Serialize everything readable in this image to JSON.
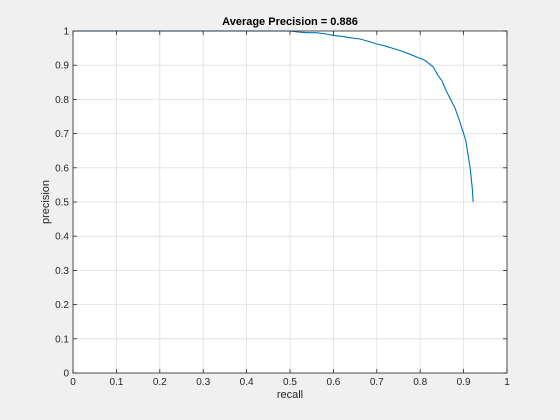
{
  "chart_data": {
    "type": "line",
    "title": "Average Precision = 0.886",
    "xlabel": "recall",
    "ylabel": "precision",
    "xlim": [
      0,
      1
    ],
    "ylim": [
      0,
      1
    ],
    "grid": true,
    "legend": "none",
    "x_ticks": [
      "0",
      "0.1",
      "0.2",
      "0.3",
      "0.4",
      "0.5",
      "0.6",
      "0.7",
      "0.8",
      "0.9",
      "1"
    ],
    "y_ticks": [
      "0",
      "0.1",
      "0.2",
      "0.3",
      "0.4",
      "0.5",
      "0.6",
      "0.7",
      "0.8",
      "0.9",
      "1"
    ],
    "series": [
      {
        "color": "#0072bd",
        "x": [
          0,
          0.05,
          0.1,
          0.2,
          0.3,
          0.4,
          0.45,
          0.5,
          0.52,
          0.54,
          0.56,
          0.58,
          0.6,
          0.62,
          0.64,
          0.66,
          0.68,
          0.7,
          0.72,
          0.74,
          0.76,
          0.78,
          0.8,
          0.81,
          0.82,
          0.83,
          0.84,
          0.85,
          0.86,
          0.87,
          0.88,
          0.89,
          0.9,
          0.905,
          0.91,
          0.915,
          0.92,
          0.922
        ],
        "y": [
          1,
          1,
          1,
          1,
          1,
          1,
          1,
          1,
          0.997,
          0.995,
          0.995,
          0.992,
          0.987,
          0.984,
          0.98,
          0.977,
          0.97,
          0.962,
          0.956,
          0.948,
          0.94,
          0.93,
          0.92,
          0.915,
          0.905,
          0.895,
          0.872,
          0.855,
          0.825,
          0.8,
          0.775,
          0.74,
          0.7,
          0.68,
          0.64,
          0.6,
          0.54,
          0.5
        ]
      }
    ]
  }
}
